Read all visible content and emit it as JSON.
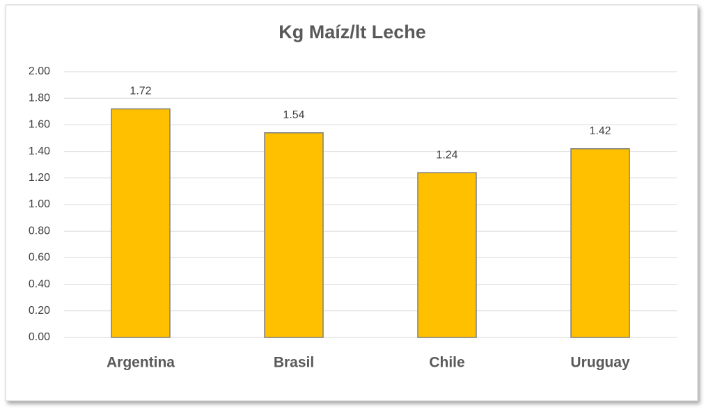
{
  "chart_data": {
    "type": "bar",
    "title": "Kg Maíz/lt Leche",
    "categories": [
      "Argentina",
      "Brasil",
      "Chile",
      "Uruguay"
    ],
    "values": [
      1.72,
      1.54,
      1.24,
      1.42
    ],
    "color": "#ffc000",
    "ylim": [
      0,
      2
    ],
    "yticks": [
      {
        "value": 0,
        "label": "0.00"
      },
      {
        "value": 0.2,
        "label": "0.20"
      },
      {
        "value": 0.4,
        "label": "0.40"
      },
      {
        "value": 0.6,
        "label": "0.60"
      },
      {
        "value": 0.8,
        "label": "0.80"
      },
      {
        "value": 1,
        "label": "1.00"
      },
      {
        "value": 1.2,
        "label": "1.20"
      },
      {
        "value": 1.4,
        "label": "1.40"
      },
      {
        "value": 1.6,
        "label": "1.60"
      },
      {
        "value": 1.8,
        "label": "1.80"
      },
      {
        "value": 2,
        "label": "2.00"
      }
    ],
    "grid": true
  }
}
